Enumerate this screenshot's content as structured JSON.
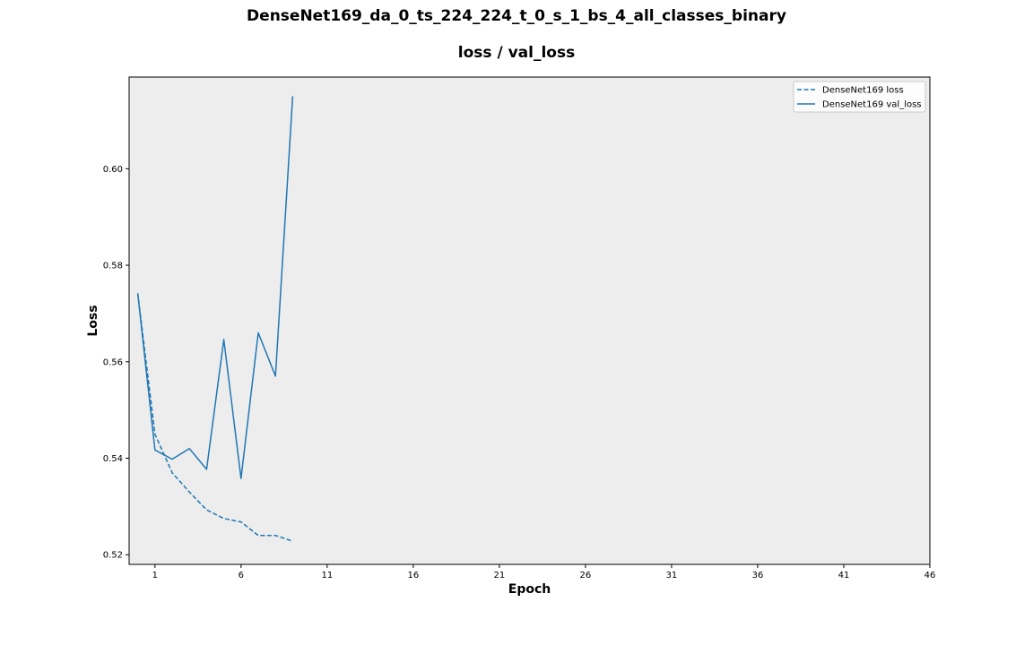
{
  "chart_data": {
    "type": "line",
    "suptitle": "DenseNet169_da_0_ts_224_224_t_0_s_1_bs_4_all_classes_binary",
    "title": "loss / val_loss",
    "xlabel": "Epoch",
    "ylabel": "Loss",
    "xlim": [
      -0.5,
      46
    ],
    "ylim": [
      0.518,
      0.619
    ],
    "xticks": [
      1,
      6,
      11,
      16,
      21,
      26,
      31,
      36,
      41,
      46
    ],
    "yticks": [
      0.52,
      0.54,
      0.56,
      0.58,
      0.6
    ],
    "ytick_labels": [
      "0.52",
      "0.54",
      "0.56",
      "0.58",
      "0.60"
    ],
    "grid": false,
    "background": "#ededed",
    "legend_position": "top-right",
    "series": [
      {
        "name": "DenseNet169 loss",
        "style": "dashed",
        "color": "#1f77b4",
        "x": [
          0,
          1,
          2,
          3,
          4,
          5,
          6,
          7,
          8,
          9
        ],
        "y": [
          0.5742,
          0.545,
          0.537,
          0.533,
          0.5293,
          0.5275,
          0.5268,
          0.524,
          0.524,
          0.5228
        ]
      },
      {
        "name": "DenseNet169 val_loss",
        "style": "solid",
        "color": "#1f77b4",
        "x": [
          0,
          1,
          2,
          3,
          4,
          5,
          6,
          7,
          8,
          9
        ],
        "y": [
          0.5742,
          0.5417,
          0.5398,
          0.542,
          0.5377,
          0.5646,
          0.5358,
          0.566,
          0.557,
          0.615
        ]
      }
    ]
  }
}
